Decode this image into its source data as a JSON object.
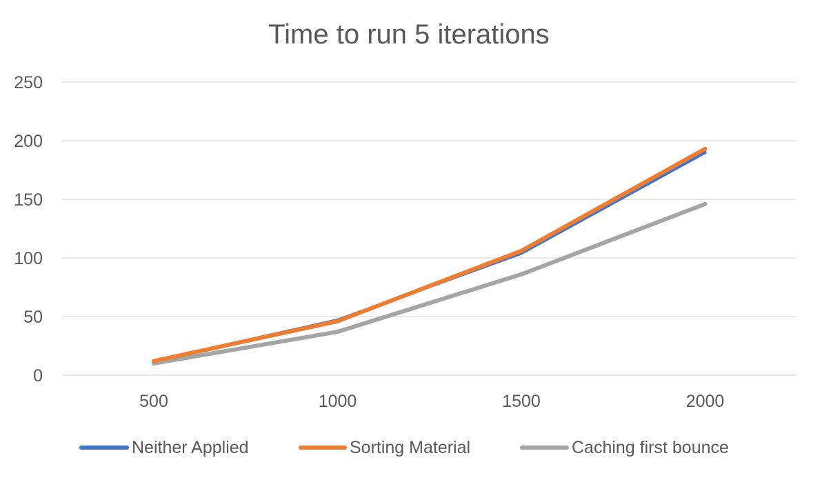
{
  "chart_data": {
    "type": "line",
    "title": "Time to run 5 iterations",
    "xlabel": "",
    "ylabel": "",
    "categories": [
      "500",
      "1000",
      "1500",
      "2000"
    ],
    "ylim": [
      0,
      250
    ],
    "yticks": [
      0,
      50,
      100,
      150,
      200,
      250
    ],
    "grid": true,
    "legend_position": "bottom",
    "series": [
      {
        "name": "Neither Applied",
        "color": "#4472c4",
        "values": [
          12,
          47,
          104,
          190
        ]
      },
      {
        "name": "Sorting Material",
        "color": "#ed7d31",
        "values": [
          12,
          46,
          106,
          193
        ]
      },
      {
        "name": "Caching first bounce",
        "color": "#a5a5a5",
        "values": [
          10,
          37,
          86,
          146
        ]
      }
    ]
  }
}
